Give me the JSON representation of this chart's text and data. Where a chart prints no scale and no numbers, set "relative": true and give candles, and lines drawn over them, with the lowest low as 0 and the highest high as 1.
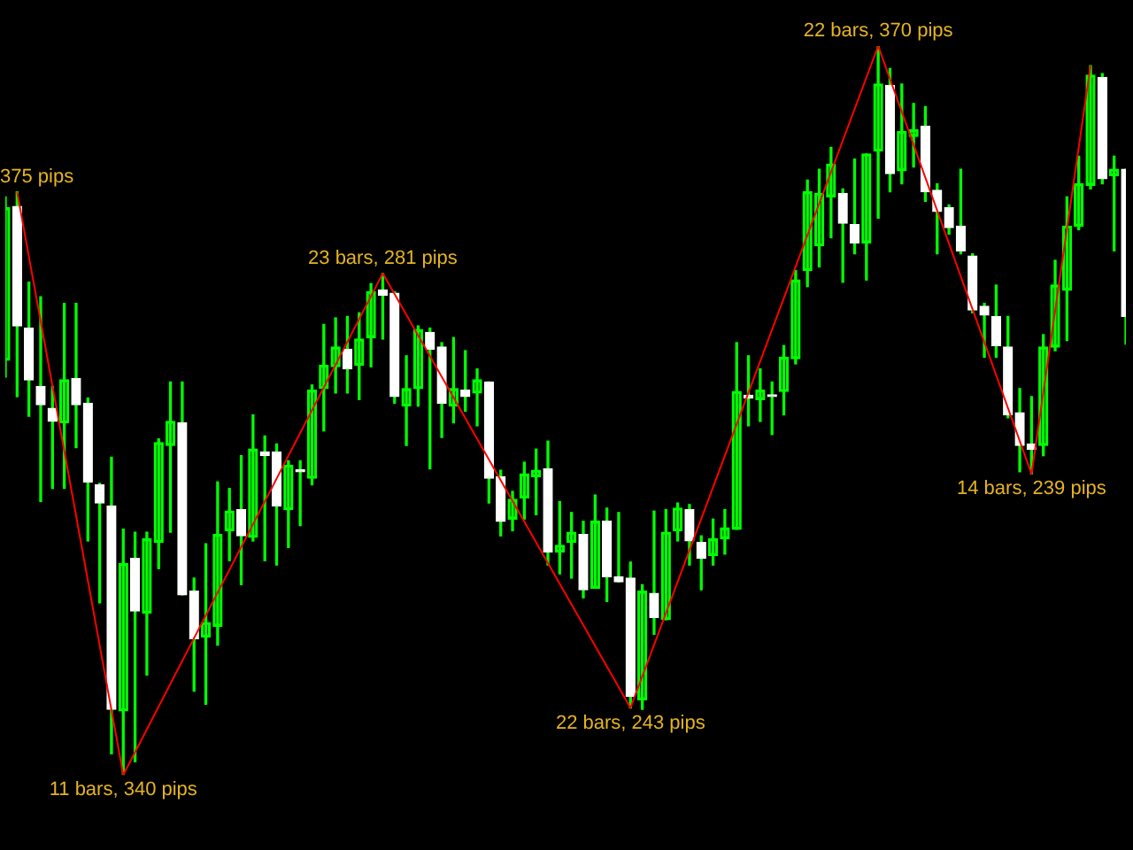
{
  "chart_data": {
    "type": "candlestick",
    "relative": true,
    "grid": false,
    "legend": false,
    "colors": [
      "#00ff00",
      "#ffffff",
      "#ffffff",
      "#ffffff",
      "#ffffff",
      "#00ff00",
      "#ffffff",
      "#ffffff",
      "#ffffff",
      "#ffffff",
      "#00ff00",
      "#ffffff",
      "#00ff00",
      "#00ff00",
      "#00ff00",
      "#ffffff",
      "#ffffff",
      "#00ff00",
      "#00ff00",
      "#00ff00",
      "#ffffff",
      "#00ff00",
      "#ffffff",
      "#ffffff",
      "#00ff00",
      "#ffffff",
      "#00ff00",
      "#00ff00",
      "#00ff00",
      "#ffffff",
      "#00ff00",
      "#00ff00",
      "#ffffff",
      "#ffffff",
      "#00ff00",
      "#00ff00",
      "#ffffff",
      "#ffffff",
      "#00ff00",
      "#ffffff",
      "#00ff00",
      "#ffffff",
      "#ffffff",
      "#00ff00",
      "#00ff00",
      "#00ff00",
      "#ffffff",
      "#00ff00",
      "#00ff00",
      "#ffffff",
      "#00ff00",
      "#ffffff",
      "#ffffff",
      "#ffffff",
      "#00ff00",
      "#ffffff",
      "#00ff00",
      "#00ff00",
      "#ffffff",
      "#ffffff",
      "#00ff00",
      "#00ff00",
      "#00ff00",
      "#ffffff",
      "#00ff00",
      "#ffffff",
      "#00ff00",
      "#00ff00",
      "#00ff00",
      "#00ff00",
      "#00ff00",
      "#ffffff",
      "#ffffff",
      "#00ff00",
      "#00ff00",
      "#ffffff",
      "#00ff00",
      "#00ff00",
      "#ffffff",
      "#ffffff",
      "#ffffff",
      "#ffffff",
      "#ffffff",
      "#ffffff",
      "#ffffff",
      "#ffffff",
      "#ffffff",
      "#ffffff",
      "#00ff00",
      "#00ff00",
      "#00ff00",
      "#00ff00",
      "#00ff00",
      "#ffffff",
      "#00ff00",
      "#ffffff"
    ],
    "categories": [
      null,
      null,
      null,
      null,
      null,
      null,
      null,
      null,
      null,
      null,
      null,
      null,
      null,
      null,
      null,
      null,
      null,
      null,
      null,
      null,
      null,
      null,
      null,
      null,
      null,
      null,
      null,
      null,
      null,
      null,
      null,
      null,
      null,
      null,
      null,
      null,
      null,
      null,
      null,
      null,
      null,
      null,
      null,
      null,
      null,
      null,
      null,
      null,
      null,
      null,
      null,
      null,
      null,
      null,
      null,
      null,
      null,
      null,
      null,
      null,
      null,
      null,
      null,
      null,
      null,
      null,
      null,
      null,
      null,
      null,
      null,
      null,
      null,
      null,
      null,
      null,
      null,
      null,
      null,
      null,
      null,
      null,
      null,
      null,
      null,
      null,
      null,
      null,
      null,
      null,
      null,
      null,
      null,
      null,
      null,
      null
    ],
    "ohlc": [
      [
        0.569,
        0.793,
        0.546,
        0.778
      ],
      [
        0.78,
        0.8,
        0.519,
        0.616
      ],
      [
        0.613,
        0.676,
        0.492,
        0.542
      ],
      [
        0.533,
        0.656,
        0.375,
        0.508
      ],
      [
        0.503,
        0.533,
        0.393,
        0.485
      ],
      [
        0.483,
        0.647,
        0.393,
        0.542
      ],
      [
        0.544,
        0.647,
        0.449,
        0.508
      ],
      [
        0.51,
        0.517,
        0.321,
        0.402
      ],
      [
        0.398,
        0.4,
        0.236,
        0.373
      ],
      [
        0.369,
        0.436,
        0.029,
        0.09
      ],
      [
        0.088,
        0.337,
        0,
        0.29
      ],
      [
        0.297,
        0.333,
        0.018,
        0.225
      ],
      [
        0.222,
        0.333,
        0.137,
        0.324
      ],
      [
        0.319,
        0.461,
        0.283,
        0.456
      ],
      [
        0.452,
        0.539,
        0.333,
        0.485
      ],
      [
        0.483,
        0.539,
        0.247,
        0.247
      ],
      [
        0.252,
        0.27,
        0.115,
        0.187
      ],
      [
        0.189,
        0.317,
        0.097,
        0.209
      ],
      [
        0.204,
        0.402,
        0.178,
        0.33
      ],
      [
        0.335,
        0.393,
        0.294,
        0.362
      ],
      [
        0.364,
        0.438,
        0.261,
        0.328
      ],
      [
        0.326,
        0.494,
        0.321,
        0.447
      ],
      [
        0.443,
        0.465,
        0.294,
        0.438
      ],
      [
        0.443,
        0.454,
        0.288,
        0.369
      ],
      [
        0.364,
        0.431,
        0.312,
        0.425
      ],
      [
        0.418,
        0.431,
        0.342,
        0.416
      ],
      [
        0.407,
        0.535,
        0.398,
        0.528
      ],
      [
        0.53,
        0.618,
        0.472,
        0.562
      ],
      [
        0.56,
        0.627,
        0.524,
        0.587
      ],
      [
        0.584,
        0.629,
        0.524,
        0.557
      ],
      [
        0.562,
        0.634,
        0.515,
        0.598
      ],
      [
        0.6,
        0.674,
        0.56,
        0.663
      ],
      [
        0.665,
        0.688,
        0.598,
        0.658
      ],
      [
        0.661,
        0.663,
        0.51,
        0.519
      ],
      [
        0.506,
        0.575,
        0.452,
        0.53
      ],
      [
        0.53,
        0.616,
        0.506,
        0.611
      ],
      [
        0.607,
        0.613,
        0.42,
        0.584
      ],
      [
        0.587,
        0.593,
        0.463,
        0.51
      ],
      [
        0.506,
        0.6,
        0.483,
        0.53
      ],
      [
        0.528,
        0.582,
        0.499,
        0.519
      ],
      [
        0.524,
        0.557,
        0.479,
        0.542
      ],
      [
        0.539,
        0.539,
        0.373,
        0.407
      ],
      [
        0.409,
        0.418,
        0.328,
        0.348
      ],
      [
        0.351,
        0.389,
        0.335,
        0.378
      ],
      [
        0.38,
        0.429,
        0.351,
        0.413
      ],
      [
        0.409,
        0.447,
        0.357,
        0.418
      ],
      [
        0.42,
        0.458,
        0.288,
        0.306
      ],
      [
        0.306,
        0.375,
        0.276,
        0.315
      ],
      [
        0.319,
        0.36,
        0.27,
        0.333
      ],
      [
        0.33,
        0.348,
        0.243,
        0.254
      ],
      [
        0.256,
        0.384,
        0.256,
        0.348
      ],
      [
        0.348,
        0.366,
        0.238,
        0.272
      ],
      [
        0.272,
        0.36,
        0.265,
        0.265
      ],
      [
        0.27,
        0.292,
        0.092,
        0.108
      ],
      [
        0.103,
        0.261,
        0.09,
        0.252
      ],
      [
        0.249,
        0.362,
        0.193,
        0.216
      ],
      [
        0.213,
        0.364,
        0.213,
        0.333
      ],
      [
        0.335,
        0.373,
        0.321,
        0.366
      ],
      [
        0.364,
        0.371,
        0.288,
        0.321
      ],
      [
        0.319,
        0.328,
        0.254,
        0.297
      ],
      [
        0.301,
        0.351,
        0.288,
        0.324
      ],
      [
        0.324,
        0.364,
        0.303,
        0.339
      ],
      [
        0.337,
        0.593,
        0.337,
        0.526
      ],
      [
        0.521,
        0.575,
        0.479,
        0.517
      ],
      [
        0.515,
        0.557,
        0.485,
        0.528
      ],
      [
        0.521,
        0.539,
        0.467,
        0.519
      ],
      [
        0.526,
        0.589,
        0.494,
        0.573
      ],
      [
        0.571,
        0.692,
        0.564,
        0.679
      ],
      [
        0.692,
        0.816,
        0.67,
        0.8
      ],
      [
        0.726,
        0.831,
        0.697,
        0.798
      ],
      [
        0.793,
        0.861,
        0.737,
        0.838
      ],
      [
        0.798,
        0.804,
        0.676,
        0.757
      ],
      [
        0.755,
        0.845,
        0.715,
        0.73
      ],
      [
        0.73,
        0.852,
        0.679,
        0.852
      ],
      [
        0.856,
        1,
        0.764,
        0.948
      ],
      [
        0.946,
        0.969,
        0.8,
        0.825
      ],
      [
        0.829,
        0.948,
        0.811,
        0.883
      ],
      [
        0.876,
        0.921,
        0.834,
        0.885
      ],
      [
        0.89,
        0.917,
        0.787,
        0.8
      ],
      [
        0.802,
        0.811,
        0.715,
        0.773
      ],
      [
        0.778,
        0.782,
        0.742,
        0.751
      ],
      [
        0.753,
        0.831,
        0.715,
        0.719
      ],
      [
        0.712,
        0.715,
        0.634,
        0.638
      ],
      [
        0.643,
        0.647,
        0.573,
        0.631
      ],
      [
        0.629,
        0.672,
        0.573,
        0.589
      ],
      [
        0.587,
        0.629,
        0.49,
        0.494
      ],
      [
        0.497,
        0.53,
        0.416,
        0.452
      ],
      [
        0.454,
        0.519,
        0.413,
        0.447
      ],
      [
        0.452,
        0.604,
        0.438,
        0.587
      ],
      [
        0.587,
        0.706,
        0.582,
        0.672
      ],
      [
        0.665,
        0.793,
        0.596,
        0.753
      ],
      [
        0.753,
        0.849,
        0.748,
        0.811
      ],
      [
        0.809,
        0.973,
        0.804,
        0.96
      ],
      [
        0.957,
        0.962,
        0.811,
        0.818
      ],
      [
        0.822,
        0.849,
        0.719,
        0.831
      ],
      [
        0.831,
        0.831,
        0.591,
        0.629
      ]
    ],
    "series": [
      {
        "type": "line",
        "color": "#ff0000",
        "marker": "none",
        "values": [
          null,
          0.8,
          null,
          null,
          null,
          null,
          null,
          null,
          null,
          null,
          0,
          null,
          null,
          null,
          null,
          null,
          null,
          null,
          null,
          null,
          null,
          null,
          null,
          null,
          null,
          null,
          null,
          null,
          null,
          null,
          null,
          null,
          0.688,
          null,
          null,
          null,
          null,
          null,
          null,
          null,
          null,
          null,
          null,
          null,
          null,
          null,
          null,
          null,
          null,
          null,
          null,
          null,
          null,
          0.092,
          null,
          null,
          null,
          null,
          null,
          null,
          null,
          null,
          null,
          null,
          null,
          null,
          null,
          null,
          null,
          null,
          null,
          null,
          null,
          null,
          1,
          null,
          null,
          null,
          null,
          null,
          null,
          null,
          null,
          null,
          null,
          null,
          null,
          0.413,
          null,
          null,
          null,
          null,
          0.973,
          null,
          null,
          null
        ]
      }
    ],
    "annotations": [
      "375 pips",
      "11 bars, 340 pips",
      "23 bars, 281 pips",
      "22 bars, 243 pips",
      "22 bars, 370 pips",
      "14 bars, 239 pips"
    ]
  }
}
